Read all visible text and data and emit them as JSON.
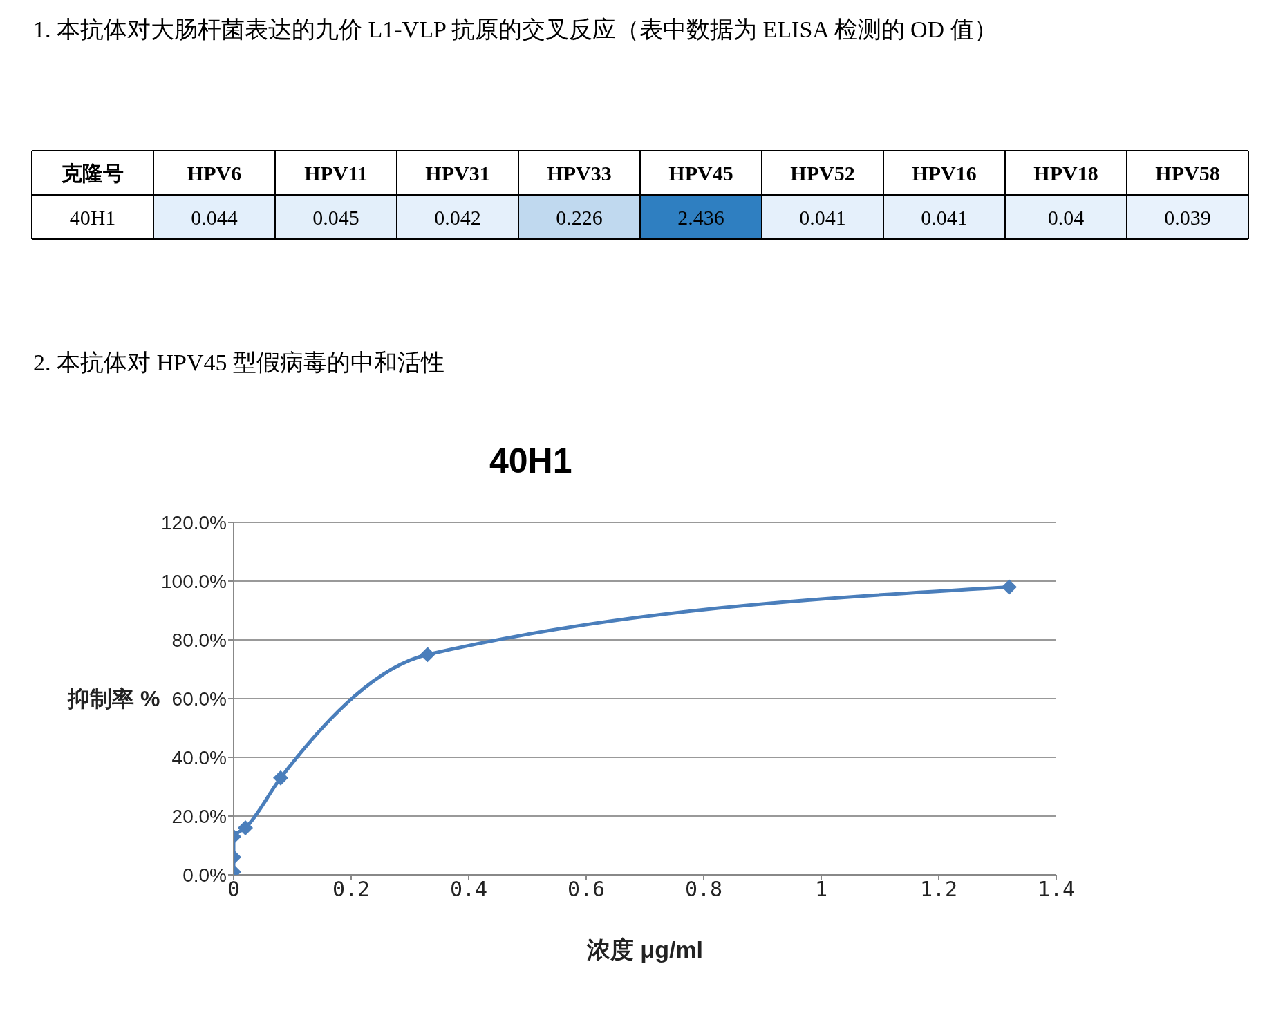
{
  "chart_data": [
    {
      "type": "heatmap",
      "title": "1. 本抗体对大肠杆菌表达的九价 L1-VLP 抗原的交叉反应（表中数据为 ELISA 检测的 OD 值）",
      "ylabel": "克隆号",
      "categories": [
        "HPV6",
        "HPV11",
        "HPV31",
        "HPV33",
        "HPV45",
        "HPV52",
        "HPV16",
        "HPV18",
        "HPV58"
      ],
      "y_categories": [
        "40H1"
      ],
      "cells": [
        [
          0.044,
          0.045,
          0.042,
          0.226,
          2.436,
          0.041,
          0.041,
          0.04,
          0.039
        ]
      ],
      "data_labels": true
    },
    {
      "type": "line",
      "subtitle": "2. 本抗体对 HPV45 型假病毒的中和活性",
      "title": "40H1",
      "xlabel": "浓度 μg/ml",
      "ylabel": "抑制率 %",
      "series": [
        {
          "color": "#4a7ebb",
          "x": [
            0,
            0,
            0,
            0.02,
            0.08,
            0.33,
            1.32
          ],
          "values": [
            1,
            6,
            13,
            16,
            33,
            75,
            98
          ]
        }
      ],
      "xlim": [
        0,
        1.4
      ],
      "xticks": [
        0,
        0.2,
        0.4,
        0.6,
        0.8,
        1,
        1.2,
        1.4
      ],
      "ylim": [
        0,
        120
      ],
      "yticks": [
        {
          "value": 0,
          "label": "0.0%"
        },
        {
          "value": 20,
          "label": "20.0%"
        },
        {
          "value": 40,
          "label": "40.0%"
        },
        {
          "value": 60,
          "label": "60.0%"
        },
        {
          "value": 80,
          "label": "80.0%"
        },
        {
          "value": 100,
          "label": "100.0%"
        },
        {
          "value": 120,
          "label": "120.0%"
        }
      ],
      "grid": "y",
      "marker": "diamond",
      "line_style": "solid"
    }
  ]
}
